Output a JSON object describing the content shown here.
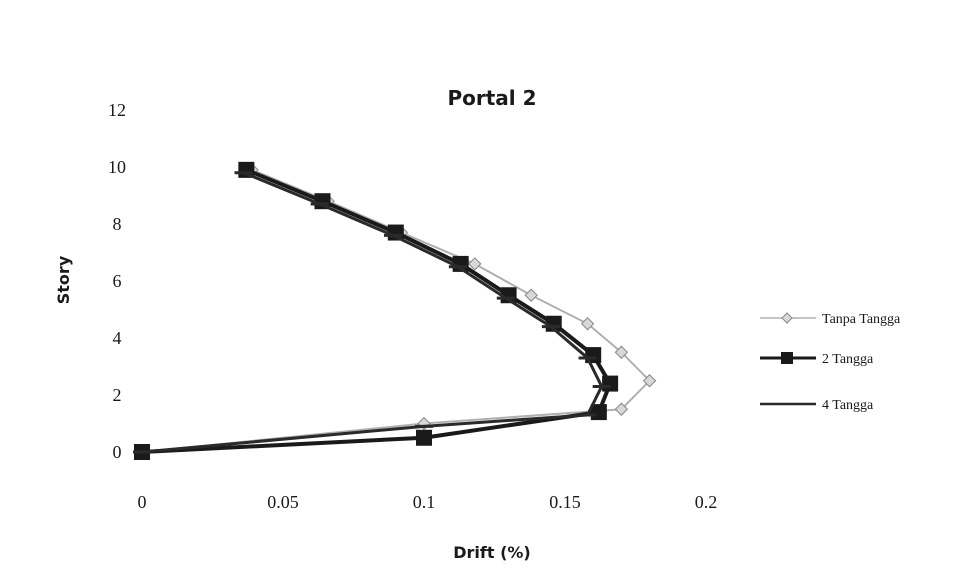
{
  "chart_data": {
    "type": "line",
    "title": "Portal 2",
    "xlabel": "Drift (%)",
    "ylabel": "Story",
    "xlim": [
      0,
      0.2
    ],
    "ylim": [
      0,
      12
    ],
    "x_ticks": [
      "0",
      "0.05",
      "0.1",
      "0.15",
      "0.2"
    ],
    "y_ticks": [
      "0",
      "2",
      "4",
      "6",
      "8",
      "10",
      "12"
    ],
    "grid": false,
    "legend_position": "right",
    "series": [
      {
        "name": "Tanpa Tangga",
        "color": "#b0b0b0",
        "marker": "diamond",
        "x": [
          0,
          0.1,
          0.17,
          0.18,
          0.17,
          0.158,
          0.138,
          0.118,
          0.092,
          0.066,
          0.039
        ],
        "y": [
          0,
          1,
          1.5,
          2.5,
          3.5,
          4.5,
          5.5,
          6.6,
          7.7,
          8.8,
          9.9
        ]
      },
      {
        "name": "2 Tangga",
        "color": "#1a1a1a",
        "marker": "square",
        "x": [
          0,
          0.1,
          0.162,
          0.166,
          0.16,
          0.146,
          0.13,
          0.113,
          0.09,
          0.064,
          0.037
        ],
        "y": [
          0,
          0.5,
          1.4,
          2.4,
          3.4,
          4.5,
          5.5,
          6.6,
          7.7,
          8.8,
          9.9
        ]
      },
      {
        "name": "4 Tangga",
        "color": "#2a2a2a",
        "marker": "dash",
        "x": [
          0,
          0.1,
          0.158,
          0.163,
          0.158,
          0.145,
          0.129,
          0.112,
          0.089,
          0.063,
          0.036
        ],
        "y": [
          0,
          0.9,
          1.3,
          2.3,
          3.3,
          4.4,
          5.4,
          6.5,
          7.6,
          8.7,
          9.8
        ]
      }
    ]
  }
}
